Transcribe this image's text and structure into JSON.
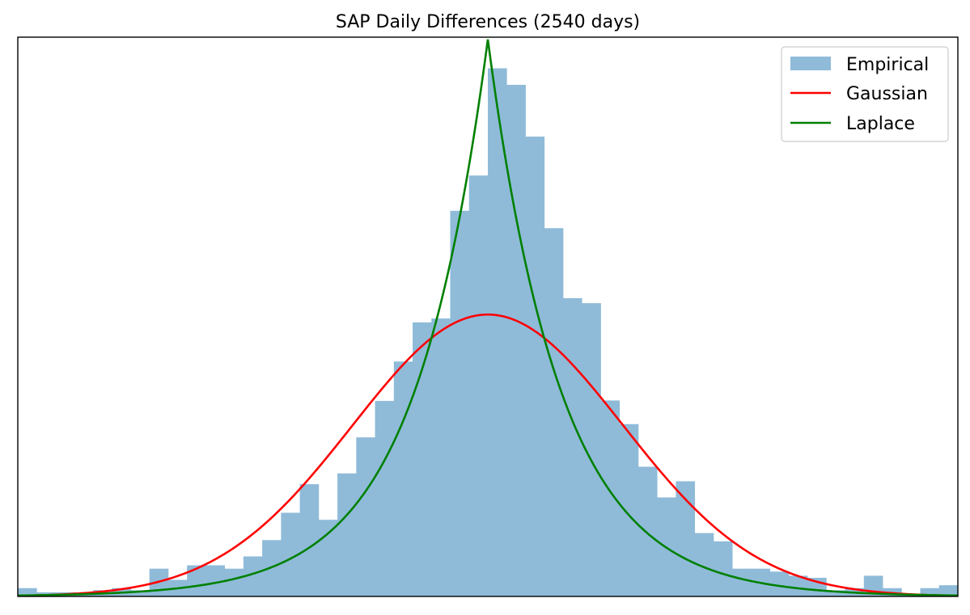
{
  "chart_data": {
    "type": "bar",
    "title": "SAP Daily Differences (2540 days)",
    "xlabel": "",
    "ylabel": "",
    "axes_ticks": false,
    "grid": false,
    "legend_position": "top-right",
    "bins": {
      "count": 50,
      "heights": [
        0.0148,
        0.0074,
        0.0074,
        0.0074,
        0.0111,
        0.0148,
        0.0111,
        0.0496,
        0.0296,
        0.0556,
        0.0556,
        0.0496,
        0.0715,
        0.1007,
        0.1496,
        0.2007,
        0.137,
        0.22,
        0.2844,
        0.3496,
        0.42,
        0.49,
        0.497,
        0.6896,
        0.7526,
        0.9444,
        0.9148,
        0.8222,
        0.6585,
        0.5333,
        0.5244,
        0.3504,
        0.3081,
        0.2319,
        0.177,
        0.2059,
        0.1133,
        0.0985,
        0.0496,
        0.0496,
        0.0444,
        0.037,
        0.0333,
        0.0111,
        0.0148,
        0.037,
        0.0148,
        0.0037,
        0.0148,
        0.02
      ]
    },
    "ylim": [
      0,
      1.0
    ],
    "series": [
      {
        "name": "Empirical",
        "kind": "histogram",
        "color": "#8fbbd9"
      },
      {
        "name": "Gaussian",
        "kind": "curve",
        "color": "#ff0000",
        "peak": 0.504,
        "sigma_bins": 7.2
      },
      {
        "name": "Laplace",
        "kind": "curve",
        "color": "#008000",
        "peak": 0.996,
        "scale_bins": 3.9
      }
    ]
  }
}
